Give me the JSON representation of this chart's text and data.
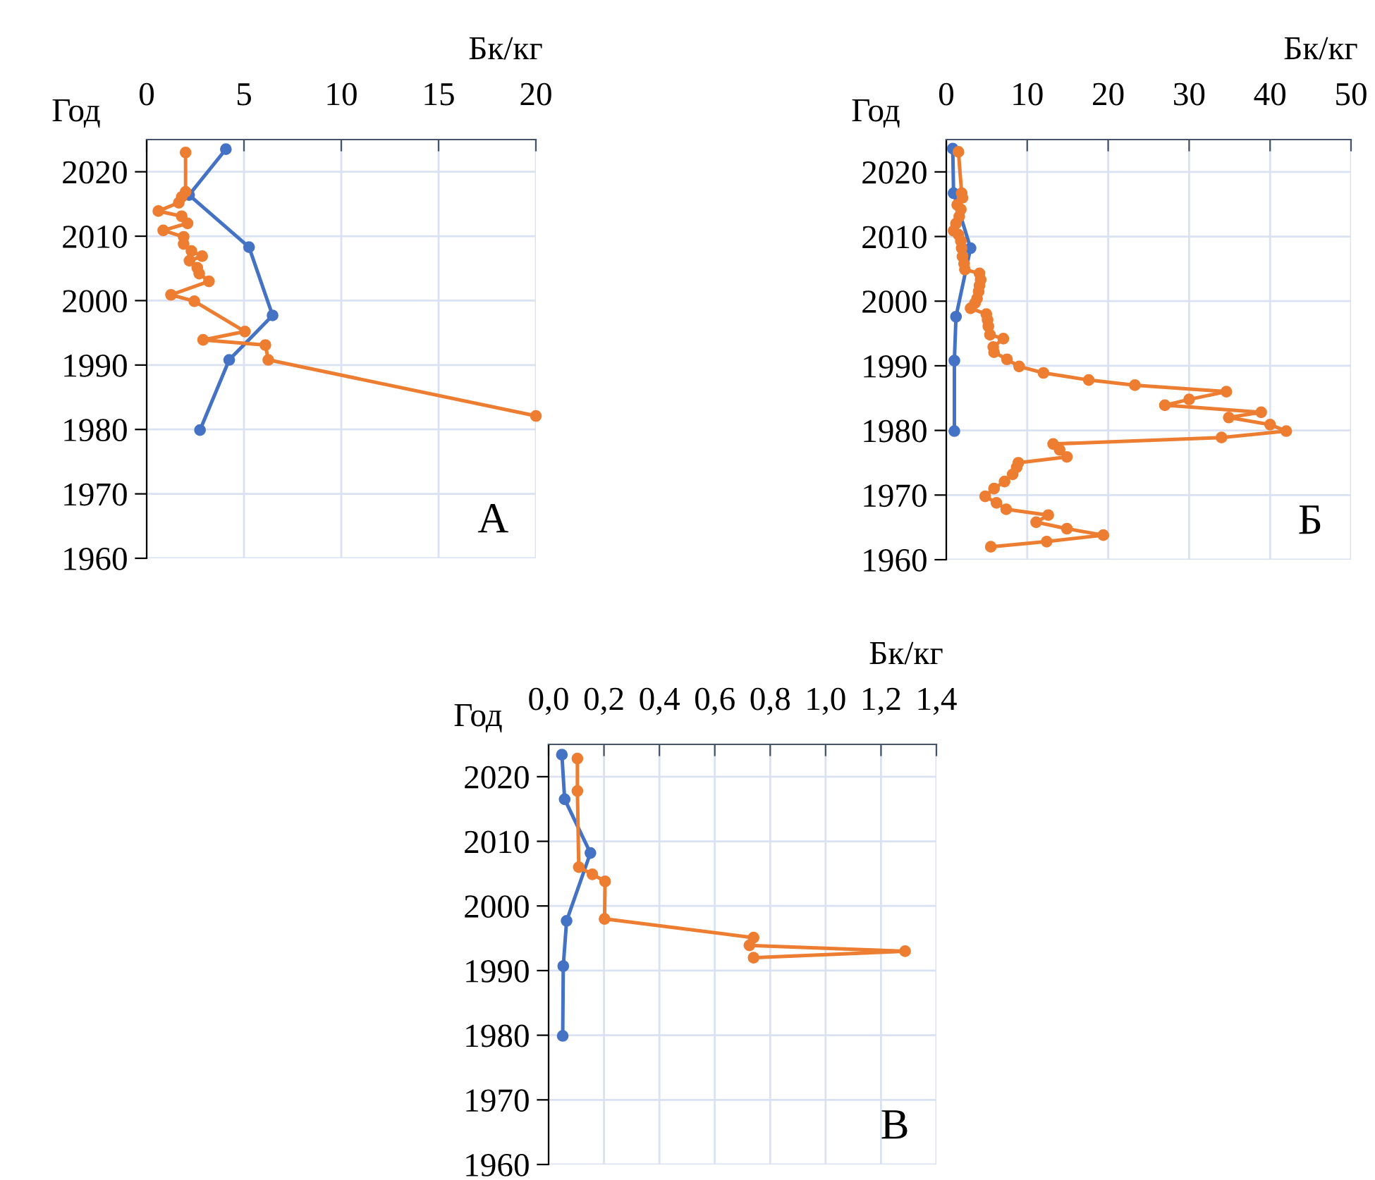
{
  "chart_data": [
    {
      "type": "line",
      "title": "А",
      "xlabel": "Бк/кг",
      "ylabel": "Год",
      "xlim": [
        0,
        20
      ],
      "xticks": [
        0,
        5,
        10,
        15,
        20
      ],
      "ylim": [
        1960,
        2025
      ],
      "yticks": [
        1960,
        1970,
        1980,
        1990,
        2000,
        2010,
        2020
      ],
      "grid": true,
      "marker": "circle",
      "line_style": "solid",
      "legend": false,
      "series": [
        {
          "color": "#4472c4",
          "x": [
            4.07,
            2.18,
            5.26,
            6.47,
            4.24,
            2.74
          ],
          "values": [
            2023.5,
            2016.4,
            2008.3,
            1997.7,
            1990.8,
            1979.9
          ]
        },
        {
          "color": "#ed7d31",
          "x": [
            2.0,
            2.0,
            1.8,
            1.65,
            0.6,
            1.8,
            2.1,
            0.85,
            1.9,
            1.9,
            2.3,
            2.85,
            2.2,
            2.6,
            2.7,
            3.2,
            1.25,
            2.45,
            5.05,
            2.9,
            6.1,
            6.25,
            20
          ],
          "values": [
            2023.0,
            2016.9,
            2016.1,
            2015.2,
            2013.9,
            2013.1,
            2012.0,
            2010.9,
            2009.9,
            2008.8,
            2007.7,
            2006.9,
            2006.2,
            2005.1,
            2004.2,
            2003.0,
            2000.9,
            1999.9,
            1995.2,
            1993.9,
            1993.1,
            1990.8,
            1982.1
          ]
        }
      ]
    },
    {
      "type": "line",
      "title": "Б",
      "xlabel": "Бк/кг",
      "ylabel": "Год",
      "xlim": [
        0,
        50
      ],
      "xticks": [
        0,
        10,
        20,
        30,
        40,
        50
      ],
      "ylim": [
        1960,
        2025
      ],
      "yticks": [
        1960,
        1970,
        1980,
        1990,
        2000,
        2010,
        2020
      ],
      "grid": true,
      "marker": "circle",
      "line_style": "solid",
      "legend": false,
      "series": [
        {
          "color": "#4472c4",
          "x": [
            0.8,
            0.9,
            3.0,
            1.2,
            1.0,
            1.0
          ],
          "values": [
            2023.6,
            2016.7,
            2008.2,
            1997.6,
            1990.8,
            1979.9
          ]
        },
        {
          "color": "#ed7d31",
          "x": [
            1.5,
            1.9,
            2.0,
            1.35,
            1.8,
            1.6,
            1.2,
            0.9,
            1.5,
            1.8,
            1.9,
            2.0,
            2.2,
            2.3,
            4.1,
            4.25,
            4.1,
            4.0,
            3.8,
            3.55,
            3.0,
            4.95,
            5.1,
            5.2,
            5.4,
            7.05,
            5.8,
            5.9,
            7.5,
            9.0,
            12.0,
            17.6,
            23.3,
            34.6,
            30.0,
            27.0,
            38.9,
            34.9,
            40.0,
            42.0,
            34.0,
            13.2,
            14.0,
            14.9,
            8.9,
            8.7,
            8.2,
            7.2,
            5.9,
            4.8,
            6.2,
            7.4,
            12.6,
            11.1,
            14.9,
            19.4,
            12.4,
            5.5
          ],
          "values": [
            2023.1,
            2016.7,
            2016.0,
            2014.9,
            2014.2,
            2013.1,
            2012.0,
            2010.9,
            2010.3,
            2009.3,
            2008.2,
            2006.9,
            2005.8,
            2004.9,
            2004.3,
            2003.3,
            2002.4,
            2001.5,
            2000.4,
            1999.7,
            1998.9,
            1998.0,
            1997.1,
            1996.1,
            1994.8,
            1994.2,
            1992.9,
            1992.1,
            1991.0,
            1989.9,
            1988.9,
            1987.8,
            1987.0,
            1986.0,
            1984.8,
            1983.9,
            1982.8,
            1982.0,
            1980.9,
            1979.9,
            1978.9,
            1977.9,
            1977.0,
            1975.9,
            1975.0,
            1974.3,
            1973.2,
            1972.1,
            1971.0,
            1969.8,
            1968.8,
            1967.8,
            1966.9,
            1965.8,
            1964.8,
            1963.8,
            1962.8,
            1962.0
          ]
        }
      ]
    },
    {
      "type": "line",
      "title": "В",
      "xlabel": "Бк/кг",
      "ylabel": "Год",
      "xlim": [
        0,
        1.4
      ],
      "xticks": [
        {
          "value": 0,
          "label": "0,0"
        },
        {
          "value": 0.2,
          "label": "0,2"
        },
        {
          "value": 0.4,
          "label": "0,4"
        },
        {
          "value": 0.6,
          "label": "0,6"
        },
        {
          "value": 0.8,
          "label": "0,8"
        },
        {
          "value": 1.0,
          "label": "1,0"
        },
        {
          "value": 1.2,
          "label": "1,2"
        },
        {
          "value": 1.4,
          "label": "1,4"
        }
      ],
      "ylim": [
        1960,
        2025
      ],
      "yticks": [
        1960,
        1970,
        1980,
        1990,
        2000,
        2010,
        2020
      ],
      "grid": true,
      "marker": "circle",
      "line_style": "solid",
      "legend": false,
      "series": [
        {
          "color": "#4472c4",
          "x": [
            0.048,
            0.058,
            0.151,
            0.065,
            0.053,
            0.051
          ],
          "values": [
            2023.4,
            2016.5,
            2008.2,
            1997.7,
            1990.7,
            1979.9
          ]
        },
        {
          "color": "#ed7d31",
          "x": [
            0.104,
            0.104,
            0.109,
            0.158,
            0.204,
            0.202,
            0.74,
            0.725,
            1.287,
            0.74
          ],
          "values": [
            2022.8,
            2017.8,
            2006.0,
            2004.9,
            2003.8,
            1998.0,
            1995.1,
            1993.9,
            1993.0,
            1992.0
          ]
        }
      ]
    }
  ]
}
